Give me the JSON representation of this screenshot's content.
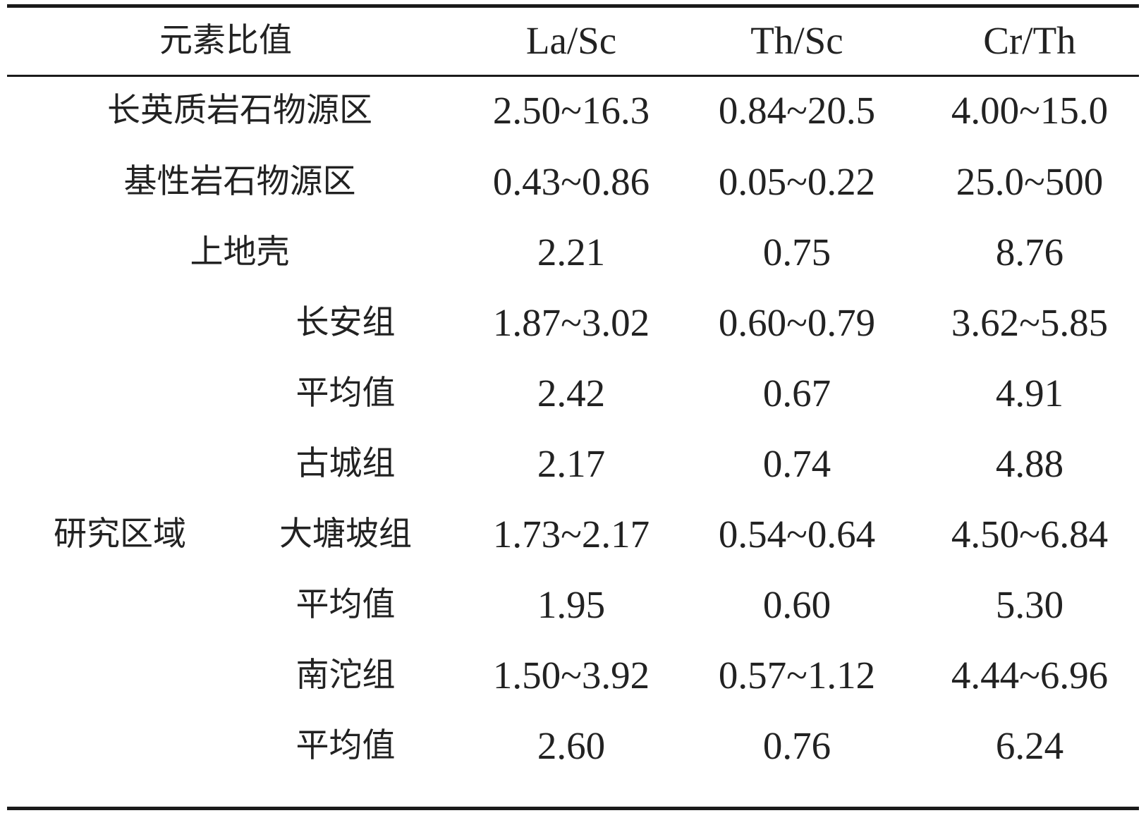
{
  "header": {
    "label": "元素比值",
    "columns": [
      "La/Sc",
      "Th/Sc",
      "Cr/Th"
    ]
  },
  "rows": [
    {
      "group": "",
      "label": "长英质岩石物源区",
      "values": [
        "2.50~16.3",
        "0.84~20.5",
        "4.00~15.0"
      ]
    },
    {
      "group": "",
      "label": "基性岩石物源区",
      "values": [
        "0.43~0.86",
        "0.05~0.22",
        "25.0~500"
      ]
    },
    {
      "group": "",
      "label": "上地壳",
      "values": [
        "2.21",
        "0.75",
        "8.76"
      ]
    },
    {
      "group": "研究区域",
      "label": "长安组",
      "values": [
        "1.87~3.02",
        "0.60~0.79",
        "3.62~5.85"
      ]
    },
    {
      "group": "研究区域",
      "label": "平均值",
      "values": [
        "2.42",
        "0.67",
        "4.91"
      ]
    },
    {
      "group": "研究区域",
      "label": "古城组",
      "values": [
        "2.17",
        "0.74",
        "4.88"
      ]
    },
    {
      "group": "研究区域",
      "label": "大塘坡组",
      "values": [
        "1.73~2.17",
        "0.54~0.64",
        "4.50~6.84"
      ]
    },
    {
      "group": "研究区域",
      "label": "平均值",
      "values": [
        "1.95",
        "0.60",
        "5.30"
      ]
    },
    {
      "group": "研究区域",
      "label": "南沱组",
      "values": [
        "1.50~3.92",
        "0.57~1.12",
        "4.44~6.96"
      ]
    },
    {
      "group": "研究区域",
      "label": "平均值",
      "values": [
        "2.60",
        "0.76",
        "6.24"
      ]
    }
  ],
  "group_label": "研究区域"
}
